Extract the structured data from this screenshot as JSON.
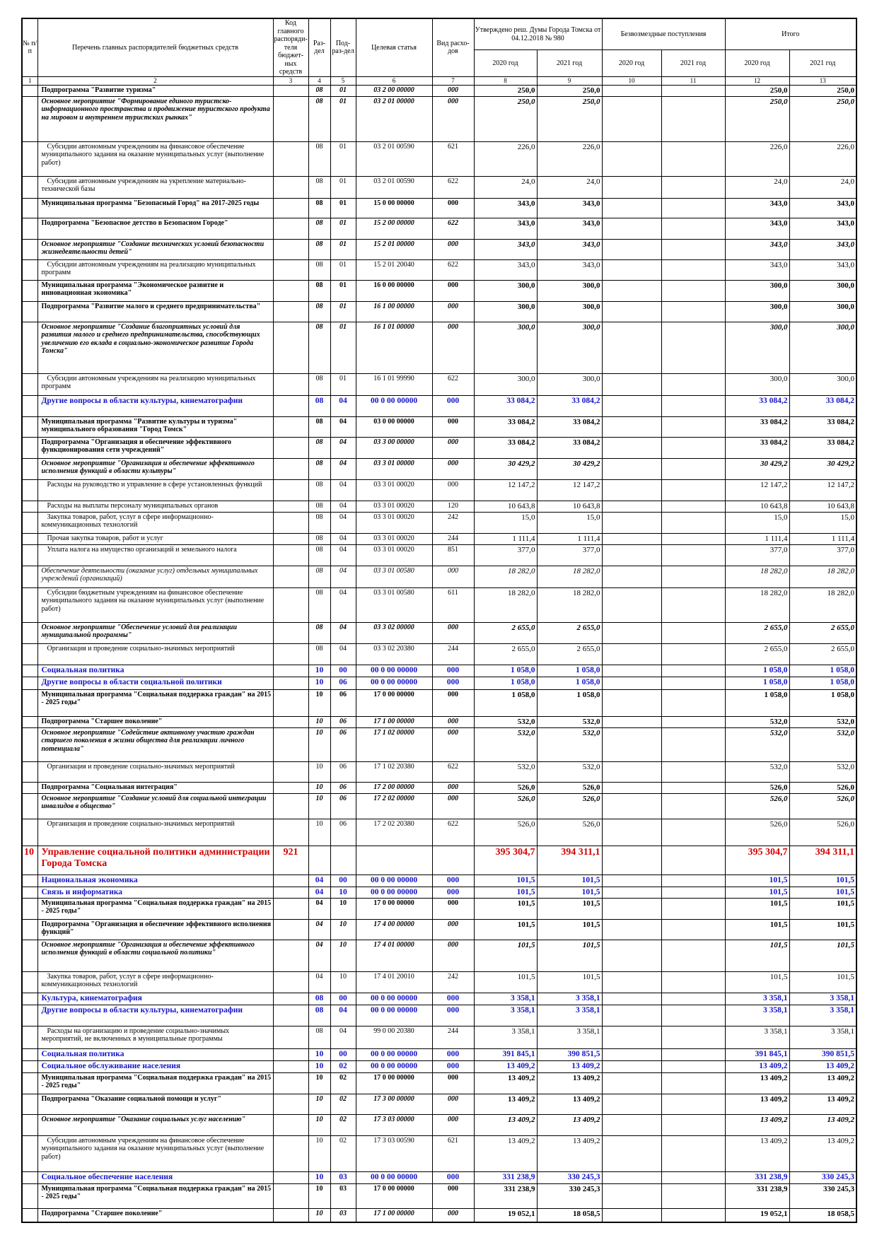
{
  "header": {
    "columns": [
      "№ п/п",
      "Перечень главных распорядителей бюджетных средств",
      "Код главного распоряди-теля бюджет-ных средств",
      "Раз-дел",
      "Под-раз-дел",
      "Целевая статья",
      "Вид расхо-дов"
    ],
    "groups": [
      "Утверждено реш. Думы Города Томска от 04.12.2018 № 980",
      "Безвозмездные поступления",
      "Итого"
    ],
    "years": [
      "2020 год",
      "2021 год",
      "2020 год",
      "2021 год",
      "2020 год",
      "2021 год"
    ],
    "numbers": [
      1,
      2,
      3,
      4,
      5,
      6,
      7,
      8,
      9,
      10,
      11,
      12,
      13
    ]
  },
  "table": {
    "rows": [
      [
        null,
        "Подпрограмма \"Развитие туризма\"",
        null,
        "08",
        "01",
        "03 2 00 00000",
        "000",
        "250,0",
        "250,0",
        null,
        null,
        "250,0",
        "250,0"
      ],
      [
        null,
        "Основное мероприятие \"Формирование единого туристско-информационного пространства и продвижение туристского продукта на мировом и внутреннем туристских рынках\"",
        null,
        "08",
        "01",
        "03 2 01 00000",
        "000",
        "250,0",
        "250,0",
        null,
        null,
        "250,0",
        "250,0"
      ],
      [
        null,
        "Субсидии автономным учреждениям на финансовое обеспечение муниципального задания на оказание муниципальных услуг (выполнение работ)",
        null,
        "08",
        "01",
        "03 2 01 00590",
        "621",
        "226,0",
        "226,0",
        null,
        null,
        "226,0",
        "226,0"
      ],
      [
        null,
        "Субсидии автономным учреждениям на укрепление материально-технической базы",
        null,
        "08",
        "01",
        "03 2 01 00590",
        "622",
        "24,0",
        "24,0",
        null,
        null,
        "24,0",
        "24,0"
      ],
      [
        null,
        "Муниципальная программа \"Безопасный Город\" на 2017-2025 годы",
        null,
        "08",
        "01",
        "15 0 00 00000",
        "000",
        "343,0",
        "343,0",
        null,
        null,
        "343,0",
        "343,0"
      ],
      [
        null,
        "Подпрограмма \"Безопасное детство в Безопасном Городе\"",
        null,
        "08",
        "01",
        "15 2 00 00000",
        "622",
        "343,0",
        "343,0",
        null,
        null,
        "343,0",
        "343,0"
      ],
      [
        null,
        "Основное мероприятие \"Создание технических условий безопасности жизнедеятельности детей\"",
        null,
        "08",
        "01",
        "15 2 01 00000",
        "000",
        "343,0",
        "343,0",
        null,
        null,
        "343,0",
        "343,0"
      ],
      [
        null,
        "Субсидии автономным учреждениям на реализацию муниципальных программ",
        null,
        "08",
        "01",
        "15 2 01 20040",
        "622",
        "343,0",
        "343,0",
        null,
        null,
        "343,0",
        "343,0"
      ],
      [
        null,
        "Муниципальная программа \"Экономическое развитие и инновационная экономика\"",
        null,
        "08",
        "01",
        "16 0 00 00000",
        "000",
        "300,0",
        "300,0",
        null,
        null,
        "300,0",
        "300,0"
      ],
      [
        null,
        "Подпрограмма \"Развитие малого и среднего предпринимательства\"",
        null,
        "08",
        "01",
        "16 1 00 00000",
        "000",
        "300,0",
        "300,0",
        null,
        null,
        "300,0",
        "300,0"
      ],
      [
        null,
        "Основное мероприятие \"Создание благоприятных условий для развития малого и среднего предпринимательства, способствующих увеличению его вклада в социально-экономическое развитие Города Томска\"",
        null,
        "08",
        "01",
        "16 1 01 00000",
        "000",
        "300,0",
        "300,0",
        null,
        null,
        "300,0",
        "300,0"
      ],
      [
        null,
        "Субсидии автономным учреждениям на реализацию муниципальных программ",
        null,
        "08",
        "01",
        "16 1 01 99990",
        "622",
        "300,0",
        "300,0",
        null,
        null,
        "300,0",
        "300,0"
      ],
      [
        null,
        "Другие вопросы в области культуры, кинематографии",
        null,
        "08",
        "04",
        "00 0 00 00000",
        "000",
        "33 084,2",
        "33 084,2",
        null,
        null,
        "33 084,2",
        "33 084,2"
      ],
      [
        null,
        "Муниципальная программа \"Развитие культуры и туризма\" муниципального образования \"Город Томск\"",
        null,
        "08",
        "04",
        "03 0 00 00000",
        "000",
        "33 084,2",
        "33 084,2",
        null,
        null,
        "33 084,2",
        "33 084,2"
      ],
      [
        null,
        "Подпрограмма \"Организация и обеспечение эффективного функционирования сети учреждений\"",
        null,
        "08",
        "04",
        "03 3 00 00000",
        "000",
        "33 084,2",
        "33 084,2",
        null,
        null,
        "33 084,2",
        "33 084,2"
      ],
      [
        null,
        "Основное мероприятие \"Организация и обеспечение эффективного исполнения функций в области культуры\"",
        null,
        "08",
        "04",
        "03 3 01 00000",
        "000",
        "30 429,2",
        "30 429,2",
        null,
        null,
        "30 429,2",
        "30 429,2"
      ],
      [
        null,
        "Расходы на руководство и управление в сфере установленных функций",
        null,
        "08",
        "04",
        "03 3 01 00020",
        "000",
        "12 147,2",
        "12 147,2",
        null,
        null,
        "12 147,2",
        "12 147,2"
      ],
      [
        null,
        "Расходы на выплаты персоналу муниципальных органов",
        null,
        "08",
        "04",
        "03 3 01 00020",
        "120",
        "10 643,8",
        "10 643,8",
        null,
        null,
        "10 643,8",
        "10 643,8"
      ],
      [
        null,
        "Закупка товаров, работ, услуг в сфере информационно-коммуникационных технологий",
        null,
        "08",
        "04",
        "03 3 01 00020",
        "242",
        "15,0",
        "15,0",
        null,
        null,
        "15,0",
        "15,0"
      ],
      [
        null,
        "Прочая закупка товаров, работ и услуг",
        null,
        "08",
        "04",
        "03 3 01 00020",
        "244",
        "1 111,4",
        "1 111,4",
        null,
        null,
        "1 111,4",
        "1 111,4"
      ],
      [
        null,
        "Уплата налога на имущество организаций и земельного налога",
        null,
        "08",
        "04",
        "03 3 01 00020",
        "851",
        "377,0",
        "377,0",
        null,
        null,
        "377,0",
        "377,0"
      ],
      [
        null,
        "Обеспечение деятельности (оказание услуг) отдельных муниципальных учреждений (организаций)",
        null,
        "08",
        "04",
        "03 3 01 00580",
        "000",
        "18 282,0",
        "18 282,0",
        null,
        null,
        "18 282,0",
        "18 282,0"
      ],
      [
        null,
        "Субсидии бюджетным учреждениям на финансовое обеспечение муниципального задания на оказание муниципальных услуг (выполнение работ)",
        null,
        "08",
        "04",
        "03 3 01 00580",
        "611",
        "18 282,0",
        "18 282,0",
        null,
        null,
        "18 282,0",
        "18 282,0"
      ],
      [
        null,
        "Основное мероприятие \"Обеспечение условий для реализации муниципальной программы\"",
        null,
        "08",
        "04",
        "03 3 02 00000",
        "000",
        "2 655,0",
        "2 655,0",
        null,
        null,
        "2 655,0",
        "2 655,0"
      ],
      [
        null,
        "Организация и проведение социально-значимых мероприятий",
        null,
        "08",
        "04",
        "03 3 02 20380",
        "244",
        "2 655,0",
        "2 655,0",
        null,
        null,
        "2 655,0",
        "2 655,0"
      ],
      [
        null,
        "Социальная политика",
        null,
        "10",
        "00",
        "00 0 00 00000",
        "000",
        "1 058,0",
        "1 058,0",
        null,
        null,
        "1 058,0",
        "1 058,0"
      ],
      [
        null,
        "Другие вопросы в области социальной политики",
        null,
        "10",
        "06",
        "00 0 00 00000",
        "000",
        "1 058,0",
        "1 058,0",
        null,
        null,
        "1 058,0",
        "1 058,0"
      ],
      [
        null,
        "Муниципальная программа \"Социальная поддержка граждан\" на 2015 - 2025 годы\"",
        null,
        "10",
        "06",
        "17 0 00 00000",
        "000",
        "1 058,0",
        "1 058,0",
        null,
        null,
        "1 058,0",
        "1 058,0"
      ],
      [
        null,
        "Подпрограмма \"Старшее поколение\"",
        null,
        "10",
        "06",
        "17 1 00 00000",
        "000",
        "532,0",
        "532,0",
        null,
        null,
        "532,0",
        "532,0"
      ],
      [
        null,
        "Основное мероприятие \"Содействие активному участию граждан старшего поколения в жизни общества для реализации личного потенциала\"",
        null,
        "10",
        "06",
        "17 1 02 00000",
        "000",
        "532,0",
        "532,0",
        null,
        null,
        "532,0",
        "532,0"
      ],
      [
        null,
        "Организация и проведение социально-значимых мероприятий",
        null,
        "10",
        "06",
        "17 1 02 20380",
        "622",
        "532,0",
        "532,0",
        null,
        null,
        "532,0",
        "532,0"
      ],
      [
        null,
        "Подпрограмма \"Социальная интеграция\"",
        null,
        "10",
        "06",
        "17 2 00 00000",
        "000",
        "526,0",
        "526,0",
        null,
        null,
        "526,0",
        "526,0"
      ],
      [
        null,
        "Основное мероприятие \"Создание условий для социальной интеграции инвалидов в общество\"",
        null,
        "10",
        "06",
        "17 2 02 00000",
        "000",
        "526,0",
        "526,0",
        null,
        null,
        "526,0",
        "526,0"
      ],
      [
        null,
        "Организация и проведение социально-значимых мероприятий",
        null,
        "10",
        "06",
        "17 2 02 20380",
        "622",
        "526,0",
        "526,0",
        null,
        null,
        "526,0",
        "526,0"
      ],
      [
        "10",
        "Управление социальной политики администрации Города Томска",
        "921",
        null,
        null,
        null,
        null,
        "395 304,7",
        "394 311,1",
        null,
        null,
        "395 304,7",
        "394 311,1"
      ],
      [
        null,
        "Национальная экономика",
        null,
        "04",
        "00",
        "00 0 00 00000",
        "000",
        "101,5",
        "101,5",
        null,
        null,
        "101,5",
        "101,5"
      ],
      [
        null,
        "Связь и информатика",
        null,
        "04",
        "10",
        "00 0 00 00000",
        "000",
        "101,5",
        "101,5",
        null,
        null,
        "101,5",
        "101,5"
      ],
      [
        null,
        "Муниципальная программа \"Социальная поддержка граждан\" на 2015 - 2025 годы\"",
        null,
        "04",
        "10",
        "17 0 00 00000",
        "000",
        "101,5",
        "101,5",
        null,
        null,
        "101,5",
        "101,5"
      ],
      [
        null,
        "Подпрограмма \"Организация и обеспечение эффективного исполнения функций\"",
        null,
        "04",
        "10",
        "17 4 00 00000",
        "000",
        "101,5",
        "101,5",
        null,
        null,
        "101,5",
        "101,5"
      ],
      [
        null,
        "Основное мероприятие \"Организация и обеспечение эффективного исполнения функций в области социальной политики\"",
        null,
        "04",
        "10",
        "17 4 01 00000",
        "000",
        "101,5",
        "101,5",
        null,
        null,
        "101,5",
        "101,5"
      ],
      [
        null,
        "Закупка товаров, работ, услуг в сфере информационно-коммуникационных технологий",
        null,
        "04",
        "10",
        "17 4 01 20010",
        "242",
        "101,5",
        "101,5",
        null,
        null,
        "101,5",
        "101,5"
      ],
      [
        null,
        "Культура, кинематография",
        null,
        "08",
        "00",
        "00 0 00 00000",
        "000",
        "3 358,1",
        "3 358,1",
        null,
        null,
        "3 358,1",
        "3 358,1"
      ],
      [
        null,
        "Другие вопросы в области культуры, кинематографии",
        null,
        "08",
        "04",
        "00 0 00 00000",
        "000",
        "3 358,1",
        "3 358,1",
        null,
        null,
        "3 358,1",
        "3 358,1"
      ],
      [
        null,
        "Расходы на организацию и проведение социально-значимых мероприятий, не включенных в муниципальные программы",
        null,
        "08",
        "04",
        "99 0 00 20380",
        "244",
        "3 358,1",
        "3 358,1",
        null,
        null,
        "3 358,1",
        "3 358,1"
      ],
      [
        null,
        "Социальная политика",
        null,
        "10",
        "00",
        "00 0 00 00000",
        "000",
        "391 845,1",
        "390 851,5",
        null,
        null,
        "391 845,1",
        "390 851,5"
      ],
      [
        null,
        "Социальное обслуживание населения",
        null,
        "10",
        "02",
        "00 0 00 00000",
        "000",
        "13 409,2",
        "13 409,2",
        null,
        null,
        "13 409,2",
        "13 409,2"
      ],
      [
        null,
        "Муниципальная программа \"Социальная поддержка граждан\" на 2015 - 2025 годы\"",
        null,
        "10",
        "02",
        "17 0 00 00000",
        "000",
        "13 409,2",
        "13 409,2",
        null,
        null,
        "13 409,2",
        "13 409,2"
      ],
      [
        null,
        "Подпрограмма \"Оказание социальной помощи и услуг\"",
        null,
        "10",
        "02",
        "17 3 00 00000",
        "000",
        "13 409,2",
        "13 409,2",
        null,
        null,
        "13 409,2",
        "13 409,2"
      ],
      [
        null,
        "Основное мероприятие \"Оказание социальных услуг населению\"",
        null,
        "10",
        "02",
        "17 3 03 00000",
        "000",
        "13 409,2",
        "13 409,2",
        null,
        null,
        "13 409,2",
        "13 409,2"
      ],
      [
        null,
        "Субсидии автономным учреждениям на финансовое обеспечение муниципального задания на оказание муниципальных услуг (выполнение работ)",
        null,
        "10",
        "02",
        "17 3 03 00590",
        "621",
        "13 409,2",
        "13 409,2",
        null,
        null,
        "13 409,2",
        "13 409,2"
      ],
      [
        null,
        "Социальное обеспечение населения",
        null,
        "10",
        "03",
        "00 0 00 00000",
        "000",
        "331 238,9",
        "330 245,3",
        null,
        null,
        "331 238,9",
        "330 245,3"
      ],
      [
        null,
        "Муниципальная программа \"Социальная поддержка граждан\" на 2015 - 2025 годы\"",
        null,
        "10",
        "03",
        "17 0 00 00000",
        "000",
        "331 238,9",
        "330 245,3",
        null,
        null,
        "331 238,9",
        "330 245,3"
      ],
      [
        null,
        "Подпрограмма \"Старшее поколение\"",
        null,
        "10",
        "03",
        "17 1 00 00000",
        "000",
        "19 052,1",
        "18 058,5",
        null,
        null,
        "19 052,1",
        "18 058,5"
      ]
    ]
  }
}
